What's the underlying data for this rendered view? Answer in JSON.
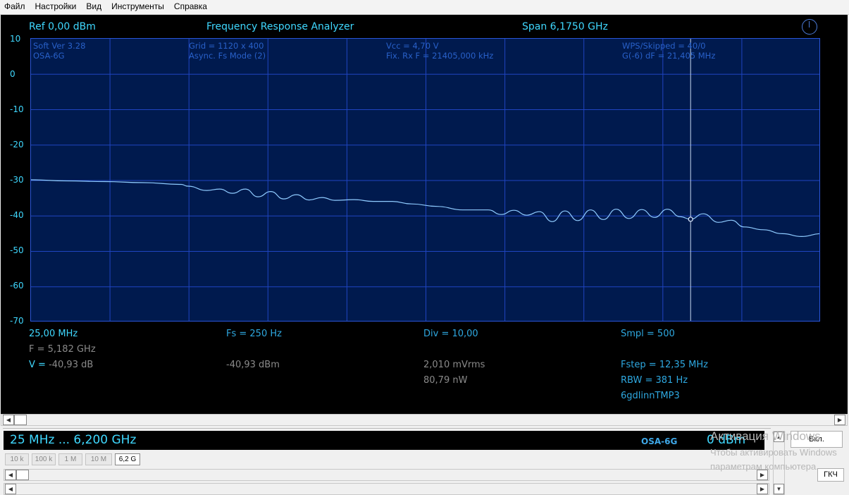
{
  "menu": [
    "Файл",
    "Настройки",
    "Вид",
    "Инструменты",
    "Справка"
  ],
  "header": {
    "ref": "Ref  0,00 dBm",
    "title": "Frequency Response Analyzer",
    "span": "Span 6,1750 GHz"
  },
  "info": {
    "soft": "Soft Ver 3.28",
    "model": "OSA-6G",
    "grid": "Grid = 1120 x 400",
    "mode": "Async. Fs Mode (2)",
    "vcc": "Vcc = 4,70 V",
    "fix_rx": "Fix. Rx F = 21405,000 kHz",
    "wps": "WPS/Skipped  = 40/0",
    "gdf": "G(-6) dF = 21,405 MHz"
  },
  "readouts": {
    "start_freq": "25,00 MHz",
    "marker_freq": "F = 5,182 GHz",
    "v_label": "V = ",
    "v_value": "-40,93 dB",
    "fs": "Fs = 250 Hz",
    "dbm": "-40,93 dBm",
    "div": "Div = 10,00",
    "mvrms": "2,010 mVrms",
    "nw": "80,79 nW",
    "smpl": "Smpl = 500",
    "fstep": "Fstep = 12,35 MHz",
    "rbw": "RBW = 381 Hz",
    "file": "6gdlinnTMP3"
  },
  "bottom": {
    "range": "25 MHz  ...  6,200 GHz",
    "osa": "OSA-6G",
    "db": "0 dBm",
    "on_button": "Вкл.",
    "gkch_button": "ГКЧ"
  },
  "tabs": [
    "10 k",
    "100 k",
    "1 M",
    "10 M",
    "6,2 G"
  ],
  "active_tab": "6,2 G",
  "watermark": {
    "line1": "Активация Windows",
    "line2": "Чтобы активировать Windows",
    "line3": "параметрам компьютера."
  },
  "colors": {
    "plot_bg": "#001a4e",
    "grid": "#1f44c0",
    "trace": "#8fcbff",
    "cyan_text": "#3fd8ff"
  },
  "chart_data": {
    "type": "line",
    "title": "Frequency Response Analyzer",
    "xlabel": "",
    "ylabel": "",
    "xlim": [
      0.025,
      6.2
    ],
    "ylim": [
      -70,
      10
    ],
    "y_ticks": [
      "10",
      "0",
      "-10",
      "-20",
      "-30",
      "-40",
      "-50",
      "-60",
      "-70"
    ],
    "grid": true,
    "marker": {
      "x": 5.182,
      "y": -40.93
    },
    "series": [
      {
        "x": [
          0.025,
          0.3,
          0.6,
          0.9,
          1.2,
          1.25,
          1.4,
          1.5,
          1.6,
          1.7,
          1.8,
          1.9,
          2.0,
          2.1,
          2.2,
          2.3,
          2.4,
          2.55,
          2.7,
          2.85,
          3.0,
          3.2,
          3.4,
          3.6,
          3.7,
          3.8,
          3.9,
          4.0,
          4.1,
          4.2,
          4.3,
          4.4,
          4.5,
          4.6,
          4.7,
          4.8,
          4.9,
          5.0,
          5.1,
          5.182,
          5.28,
          5.4,
          5.5,
          5.6,
          5.75,
          5.9,
          6.05,
          6.2
        ],
        "y": [
          -29.8,
          -30.1,
          -30.3,
          -30.6,
          -31.1,
          -31.6,
          -32.8,
          -32.4,
          -33.6,
          -32.4,
          -34.6,
          -33.1,
          -35.2,
          -34.0,
          -35.5,
          -34.8,
          -35.6,
          -35.4,
          -35.9,
          -35.9,
          -36.6,
          -37.3,
          -38.3,
          -38.3,
          -39.6,
          -38.4,
          -39.8,
          -38.8,
          -41.6,
          -38.6,
          -41.3,
          -38.3,
          -41.0,
          -38.1,
          -40.7,
          -38.2,
          -40.4,
          -38.1,
          -40.2,
          -40.93,
          -39.4,
          -41.8,
          -41.2,
          -43.1,
          -43.9,
          -45.0,
          -45.8,
          -45.0
        ]
      }
    ]
  }
}
